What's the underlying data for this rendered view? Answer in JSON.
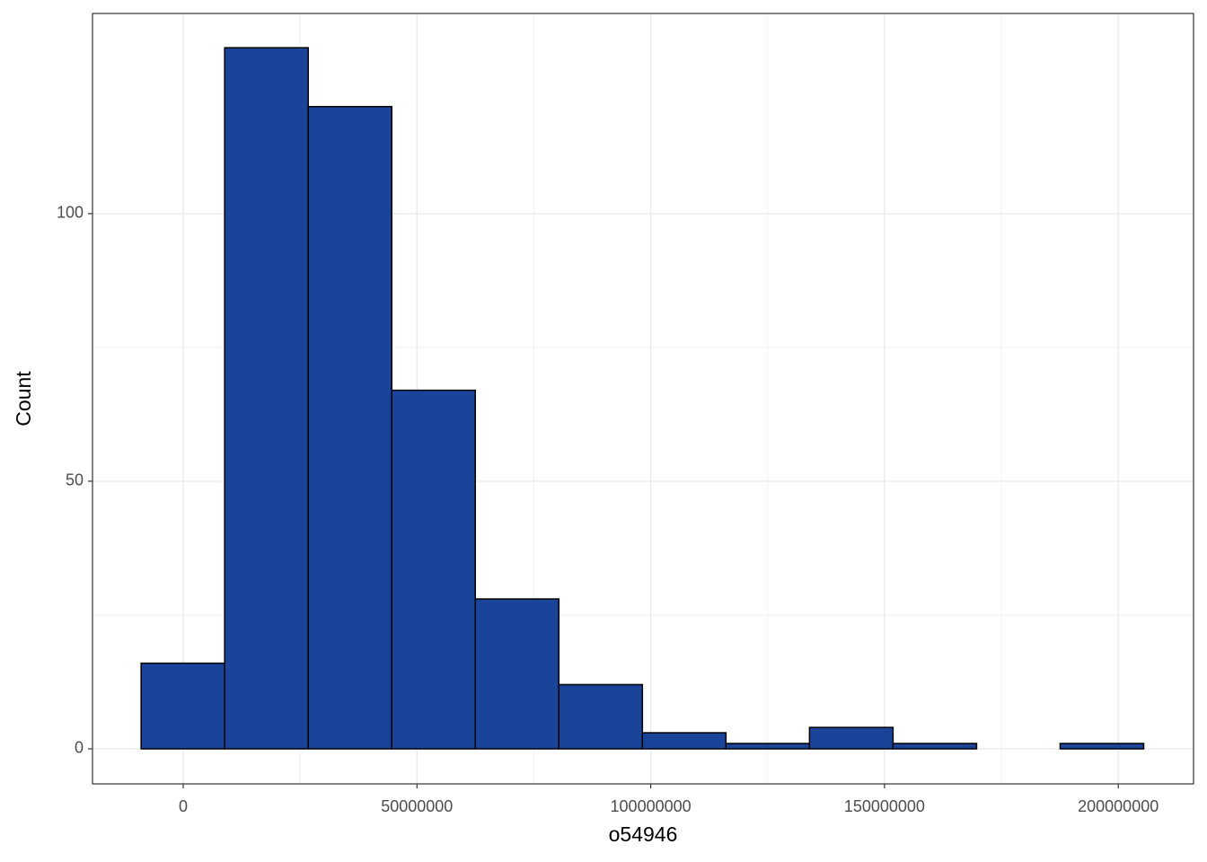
{
  "chart_data": {
    "type": "histogram",
    "x_label": "o54946",
    "y_label": "Count",
    "bins": [
      -9000000,
      8870000,
      26740000,
      44610000,
      62480000,
      80350000,
      98220000,
      116090000,
      133960000,
      151830000,
      169700000,
      187570000,
      205440000
    ],
    "values": [
      16,
      131,
      120,
      67,
      28,
      12,
      3,
      1,
      4,
      1,
      0,
      1
    ],
    "color": "#1a4499",
    "edge_color": "#000000",
    "xlim": [
      -19400000,
      216100000
    ],
    "ylim": [
      -6.55,
      137.4
    ],
    "xticks": [
      0,
      50000000,
      100000000,
      150000000,
      200000000
    ],
    "yticks": [
      0,
      50,
      100
    ],
    "grid": true
  }
}
